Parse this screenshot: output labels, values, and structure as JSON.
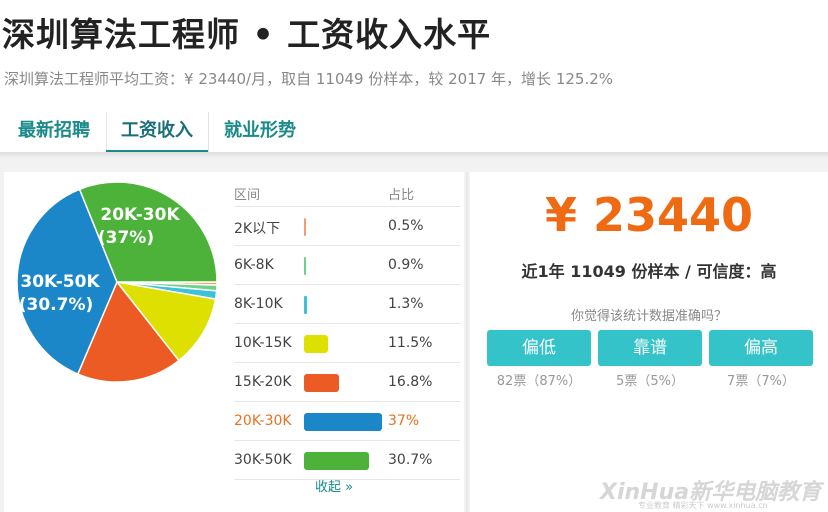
{
  "header": {
    "title": "深圳算法工程师 • 工资收入水平",
    "subtitle": "深圳算法工程师平均工资：¥ 23440/月，取自 11049 份样本，较 2017 年，增长 125.2%"
  },
  "tabs": [
    {
      "label": "最新招聘",
      "active": false
    },
    {
      "label": "工资收入",
      "active": true
    },
    {
      "label": "就业形势",
      "active": false
    }
  ],
  "chart_data": {
    "type": "pie",
    "slices": [
      {
        "label": "2K以下",
        "value": 0.5,
        "color": "#f0a070"
      },
      {
        "label": "6K-8K",
        "value": 0.9,
        "color": "#6fd08a"
      },
      {
        "label": "8K-10K",
        "value": 1.3,
        "color": "#3cc3d8"
      },
      {
        "label": "10K-15K",
        "value": 11.5,
        "color": "#dde000"
      },
      {
        "label": "15K-20K",
        "value": 16.8,
        "color": "#ec5b24"
      },
      {
        "label": "20K-30K",
        "value": 37,
        "color": "#1b87c8"
      },
      {
        "label": "30K-50K",
        "value": 30.7,
        "color": "#4cb23a"
      }
    ],
    "pie_labels": [
      {
        "line1": "20K-30K",
        "line2": "(37%)"
      },
      {
        "line1": "30K-50K",
        "line2": "(30.7%)"
      }
    ]
  },
  "table": {
    "headers": {
      "range": "区间",
      "share": "占比"
    },
    "rows": [
      {
        "label": "2K以下",
        "pct": "0.5%",
        "value": 0.5,
        "color": "#f0a070",
        "highlight": false
      },
      {
        "label": "6K-8K",
        "pct": "0.9%",
        "value": 0.9,
        "color": "#6fd08a",
        "highlight": false
      },
      {
        "label": "8K-10K",
        "pct": "1.3%",
        "value": 1.3,
        "color": "#3cc3d8",
        "highlight": false
      },
      {
        "label": "10K-15K",
        "pct": "11.5%",
        "value": 11.5,
        "color": "#dde000",
        "highlight": false
      },
      {
        "label": "15K-20K",
        "pct": "16.8%",
        "value": 16.8,
        "color": "#ec5b24",
        "highlight": false
      },
      {
        "label": "20K-30K",
        "pct": "37%",
        "value": 37,
        "color": "#1b87c8",
        "highlight": true
      },
      {
        "label": "30K-50K",
        "pct": "30.7%",
        "value": 30.7,
        "color": "#4cb23a",
        "highlight": false
      }
    ],
    "collapse_label": "收起 »"
  },
  "summary": {
    "salary": "¥ 23440",
    "samples": "近1年 11049 份样本 / 可信度：高",
    "question": "你觉得该统计数据准确吗？",
    "votes": [
      {
        "label": "偏低",
        "count": "82票（87%）"
      },
      {
        "label": "靠谱",
        "count": "5票（5%）"
      },
      {
        "label": "偏高",
        "count": "7票（7%）"
      }
    ]
  },
  "watermark": {
    "brand": "XinHua新华电脑教育",
    "tagline": "专业教育 精彩天下 www.xinhua.cn"
  }
}
